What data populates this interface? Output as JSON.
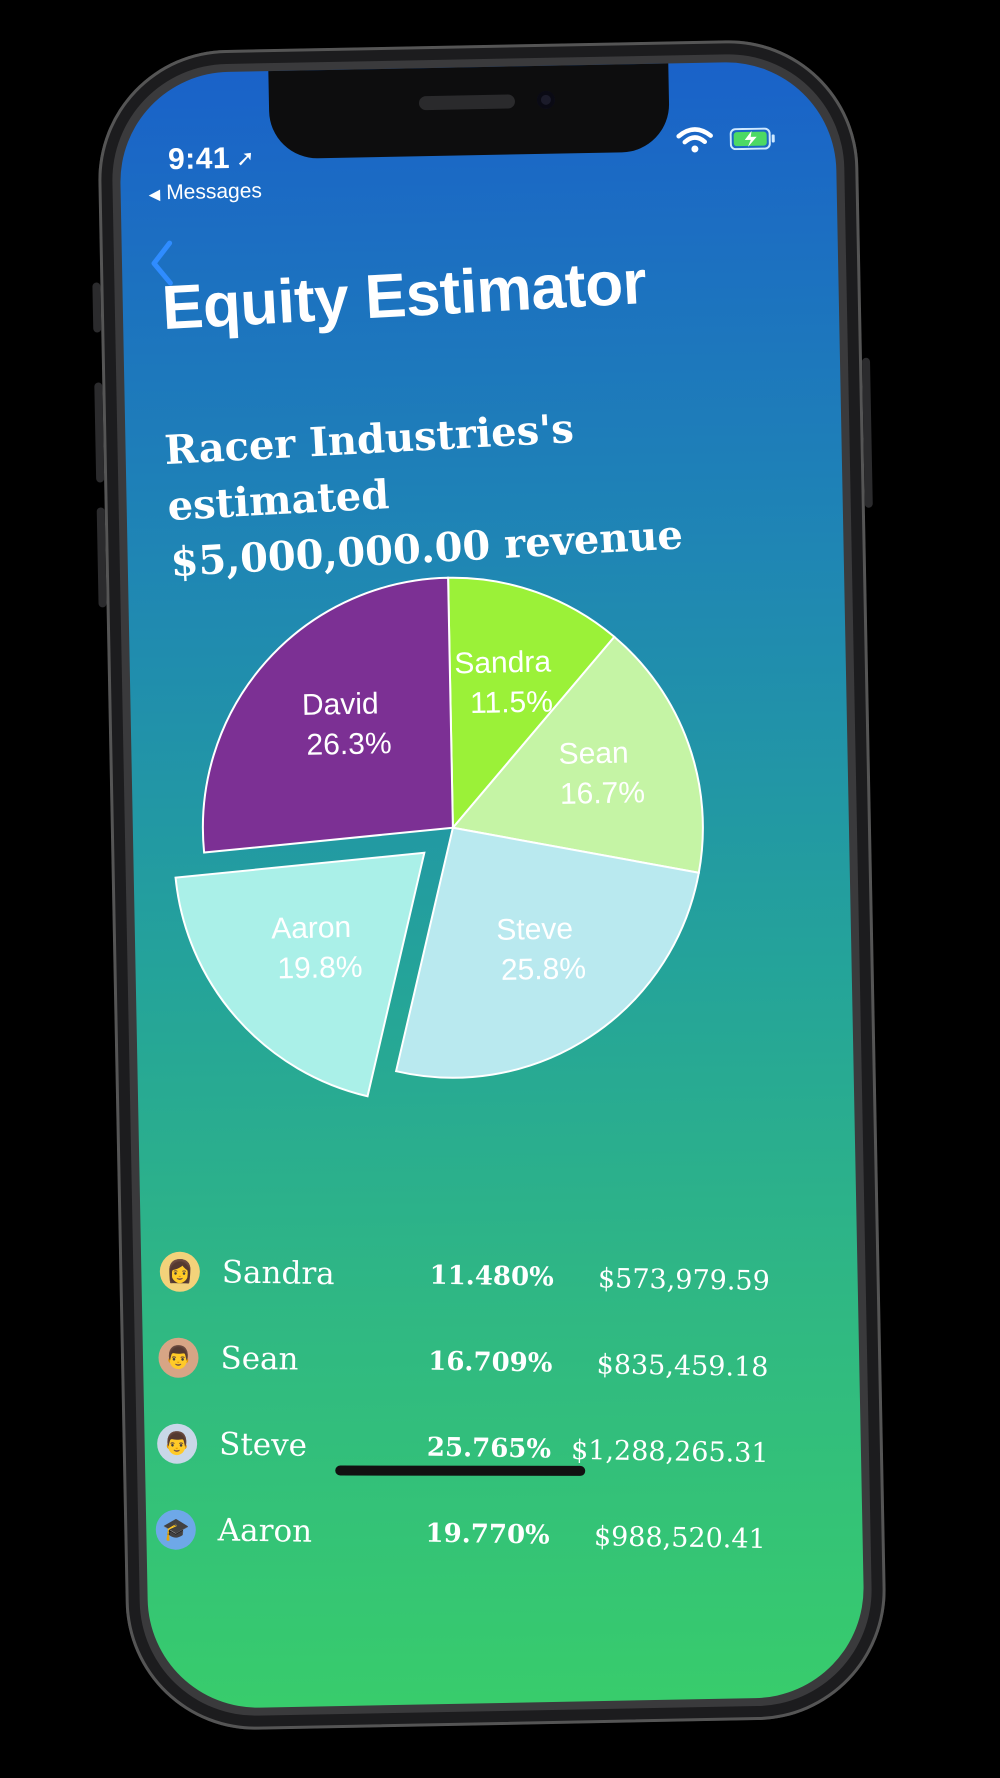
{
  "status_bar": {
    "time": "9:41",
    "back_app": "Messages"
  },
  "nav": {
    "title": "Equity Estimator"
  },
  "chart_heading": {
    "line1": "Racer Industries's estimated",
    "line2": "$5,000,000.00 revenue"
  },
  "chart_data": {
    "type": "pie",
    "slices": [
      {
        "name": "Sandra",
        "label": "11.5%",
        "value": 11.48,
        "color": "#9bf138"
      },
      {
        "name": "Sean",
        "label": "16.7%",
        "value": 16.709,
        "color": "#c5f4a5"
      },
      {
        "name": "Steve",
        "label": "25.8%",
        "value": 25.765,
        "color": "#b9e9ef"
      },
      {
        "name": "Aaron",
        "label": "19.8%",
        "value": 19.77,
        "color": "#aaf0e8"
      },
      {
        "name": "David",
        "label": "26.3%",
        "value": 26.276,
        "color": "#7c3094"
      }
    ],
    "exploded": "Aaron",
    "start_angle_deg": 0,
    "direction": "clockwise"
  },
  "holders": [
    {
      "emoji": "👩",
      "emoji_color": "#f3d27a",
      "name": "Sandra",
      "percent": "11.480%",
      "amount": "$573,979.59"
    },
    {
      "emoji": "👨",
      "emoji_color": "#d7a585",
      "name": "Sean",
      "percent": "16.709%",
      "amount": "$835,459.18"
    },
    {
      "emoji": "👨",
      "emoji_color": "#c9d7e8",
      "name": "Steve",
      "percent": "25.765%",
      "amount": "$1,288,265.31"
    },
    {
      "emoji": "🎓",
      "emoji_color": "#6ea8e8",
      "name": "Aaron",
      "percent": "19.770%",
      "amount": "$988,520.41"
    }
  ]
}
